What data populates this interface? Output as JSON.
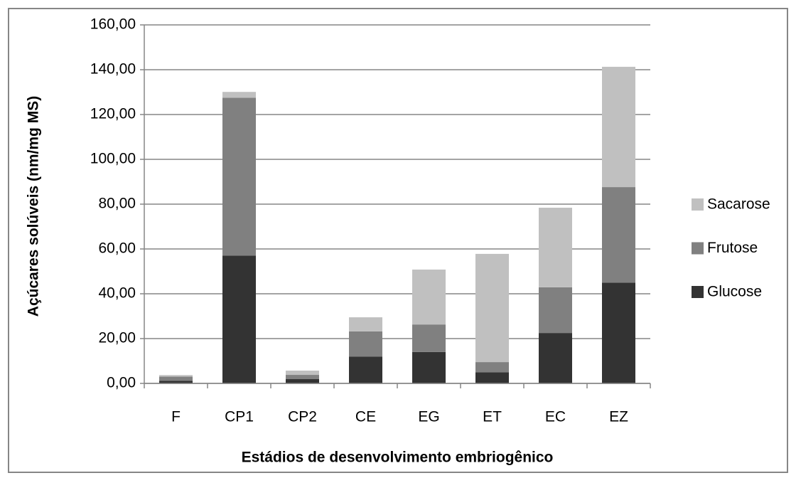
{
  "chart_data": {
    "type": "stacked_bar",
    "y_label": "Açúcares solúveis (nm/mg MS)",
    "x_label": "Estádios de desenvolvimento embriogênico",
    "categories": [
      "F",
      "CP1",
      "CP2",
      "CE",
      "EG",
      "ET",
      "EC",
      "EZ"
    ],
    "series": [
      {
        "name": "Glucose",
        "color": "#333333",
        "values": [
          1.2,
          57,
          1.9,
          12,
          14,
          5,
          22.5,
          45
        ]
      },
      {
        "name": "Frutose",
        "color": "#808080",
        "values": [
          1.8,
          70.5,
          1.9,
          11.2,
          12.3,
          4.5,
          20.4,
          42.6
        ]
      },
      {
        "name": "Sacarose",
        "color": "#c0c0c0",
        "values": [
          0.7,
          2.6,
          1.9,
          6.3,
          24.5,
          48.3,
          35.5,
          53.7
        ]
      }
    ],
    "ylim": [
      0,
      160
    ],
    "yticks": [
      {
        "value": 0,
        "label": "0,00"
      },
      {
        "value": 20,
        "label": "20,00"
      },
      {
        "value": 40,
        "label": "40,00"
      },
      {
        "value": 60,
        "label": "60,00"
      },
      {
        "value": 80,
        "label": "80,00"
      },
      {
        "value": 100,
        "label": "100,00"
      },
      {
        "value": 120,
        "label": "120,00"
      },
      {
        "value": 140,
        "label": "140,00"
      },
      {
        "value": 160,
        "label": "160,00"
      }
    ],
    "grid": true,
    "legend": "right"
  }
}
